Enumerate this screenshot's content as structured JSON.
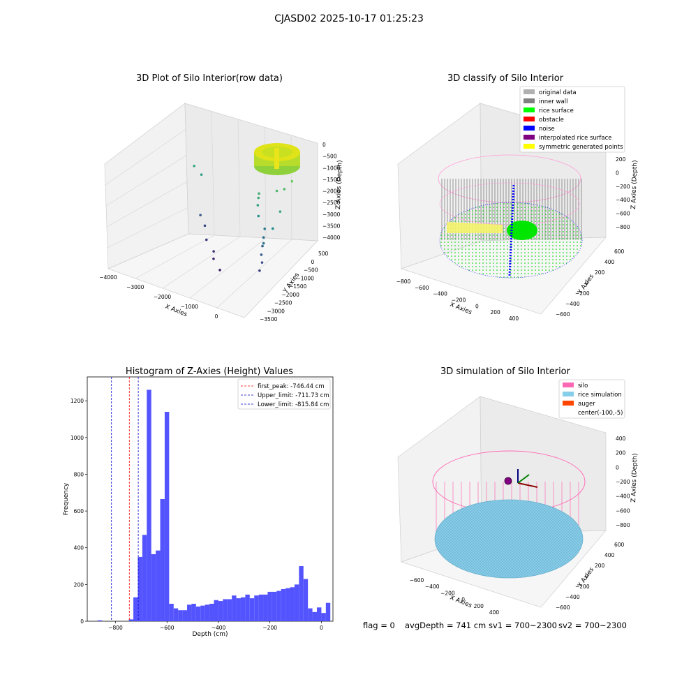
{
  "figure": {
    "suptitle": "CJASD02 2025-10-17 01:25:23",
    "footer": {
      "flag": "flag = 0",
      "avg": "avgDepth = 741 cm",
      "sv1": "sv1 = 700~2300",
      "sv2": "sv2 = 700~2300"
    }
  },
  "colors": {
    "hist_bar": "#4b4bff",
    "first_peak": "#ff0000",
    "limits": "#0000cc",
    "grid_gray": "#d0d0d0",
    "pane_gray": "#f2f2f2"
  },
  "chart_data": [
    {
      "type": "scatter",
      "title": "3D Plot of Silo Interior(row data)",
      "projection": "3d",
      "xlabel": "X Axies",
      "ylabel": "Y Axies",
      "zlabel": "Z Axies (Depth)",
      "xticks": [
        "−4000",
        "−3000",
        "−2000",
        "−1000",
        "0"
      ],
      "yticks": [
        "500",
        "0",
        "−500",
        "−1000",
        "−1500",
        "−2000",
        "−2500",
        "−3000",
        "−3500"
      ],
      "zticks": [
        "0",
        "−500",
        "−1000",
        "−1500",
        "−2000",
        "−2500",
        "−3000",
        "−3500",
        "−4000"
      ],
      "xlim": [
        -4300,
        600
      ],
      "ylim": [
        -3600,
        700
      ],
      "zlim": [
        -4100,
        200
      ],
      "colormap": "viridis (by depth)",
      "series": [
        {
          "points": [
            [
              -3900,
              300,
              -1600
            ],
            [
              -3500,
              100,
              -1700
            ],
            [
              -3300,
              -200,
              -2900
            ],
            [
              -3000,
              -400,
              -3100
            ],
            [
              -2600,
              -900,
              -3300
            ],
            [
              -2200,
              -1100,
              -3500
            ],
            [
              -2000,
              -1400,
              -3600
            ],
            [
              -1500,
              -1800,
              -3700
            ],
            [
              -1100,
              -400,
              -1400
            ],
            [
              -1050,
              -500,
              -1500
            ],
            [
              -1000,
              -600,
              -1700
            ],
            [
              -900,
              -700,
              -2000
            ],
            [
              -600,
              -800,
              -2300
            ],
            [
              -500,
              -1000,
              -2500
            ],
            [
              -400,
              -1200,
              -2700
            ],
            [
              -300,
              -1400,
              -2900
            ],
            [
              -200,
              -1500,
              -3100
            ],
            [
              -150,
              -1700,
              -3300
            ],
            [
              -100,
              -1600,
              -2400
            ],
            [
              -50,
              -1200,
              -2000
            ],
            [
              0,
              -900,
              -1500
            ],
            [
              -600,
              -200,
              -1200
            ],
            [
              -400,
              -100,
              -1100
            ],
            [
              -200,
              0,
              -800
            ]
          ]
        }
      ],
      "dense_cluster": "silo ring of points near (0, 0, -700)"
    },
    {
      "type": "scatter",
      "title": "3D classify of Silo Interior",
      "projection": "3d",
      "xlabel": "X Axies",
      "ylabel": "Y Axies",
      "zlabel": "Z Axies (Depth)",
      "xticks": [
        "−800",
        "−600",
        "−400",
        "−200",
        "0",
        "200",
        "400"
      ],
      "yticks": [
        "600",
        "400",
        "200",
        "0",
        "−200",
        "−400",
        "−600"
      ],
      "zticks": [
        "200",
        "0",
        "−200",
        "−400",
        "−600",
        "−800"
      ],
      "xlim": [
        -850,
        500
      ],
      "ylim": [
        -650,
        650
      ],
      "zlim": [
        -950,
        250
      ],
      "legend": {
        "location": "upper right",
        "entries": [
          {
            "label": "original data",
            "color": "#b0b0b0"
          },
          {
            "label": "inner wall",
            "color": "#808080"
          },
          {
            "label": "rice surface",
            "color": "#00ff00"
          },
          {
            "label": "obstacle",
            "color": "#ff0000"
          },
          {
            "label": "noise",
            "color": "#0000ff"
          },
          {
            "label": "interpolated rice surface",
            "color": "#800080"
          },
          {
            "label": "symmetric generated points",
            "color": "#ffff00"
          }
        ]
      }
    },
    {
      "type": "bar",
      "title": "Histogram of Z-Axies (Height) Values",
      "xlabel": "Depth (cm)",
      "ylabel": "Frequency",
      "xlim": [
        -910,
        45
      ],
      "ylim": [
        0,
        1330
      ],
      "xticks": [
        -800,
        -600,
        -400,
        -200,
        0
      ],
      "yticks": [
        0,
        200,
        400,
        600,
        800,
        1000,
        1200
      ],
      "xtick_labels": [
        "−800",
        "−600",
        "−400",
        "−200",
        "0"
      ],
      "ytick_labels": [
        "0",
        "200",
        "400",
        "600",
        "800",
        "1000",
        "1200"
      ],
      "bin_width": 17.4,
      "bin_start": -870,
      "values": [
        5,
        0,
        0,
        0,
        0,
        0,
        0,
        10,
        130,
        350,
        470,
        1260,
        365,
        385,
        665,
        1140,
        95,
        70,
        60,
        60,
        90,
        95,
        80,
        85,
        90,
        95,
        115,
        110,
        120,
        120,
        140,
        125,
        130,
        145,
        125,
        140,
        145,
        145,
        160,
        160,
        165,
        175,
        180,
        185,
        200,
        300,
        230,
        70,
        50,
        75,
        45,
        100
      ],
      "vlines": [
        {
          "x": -746.44,
          "style": "dashed",
          "color": "#ff0000",
          "label": "first_peak: -746.44 cm"
        },
        {
          "x": -711.73,
          "style": "dashed",
          "color": "#0000cc",
          "label": "Upper_limit: -711.73 cm"
        },
        {
          "x": -815.84,
          "style": "dashed",
          "color": "#0000cc",
          "label": "Lower_limit: -815.84 cm"
        }
      ],
      "legend": {
        "location": "upper right"
      }
    },
    {
      "type": "scatter",
      "title": "3D simulation of Silo Interior",
      "projection": "3d",
      "xlabel": "X Axies",
      "ylabel": "Y Axies",
      "zlabel": "Z Axies (Depth)",
      "xticks": [
        "−600",
        "−400",
        "−200",
        "0",
        "200",
        "400"
      ],
      "yticks": [
        "600",
        "400",
        "200",
        "0",
        "−200",
        "−400",
        "−600"
      ],
      "zticks": [
        "400",
        "200",
        "0",
        "−200",
        "−400",
        "−600",
        "−800"
      ],
      "legend": {
        "location": "upper right",
        "entries": [
          {
            "label": "silo",
            "color": "#ff69b4"
          },
          {
            "label": "rice simulation",
            "color": "#87ceeb"
          },
          {
            "label": "auger",
            "color": "#ff4500"
          },
          {
            "label": "center(-100,-5)",
            "color": ""
          }
        ]
      }
    }
  ]
}
